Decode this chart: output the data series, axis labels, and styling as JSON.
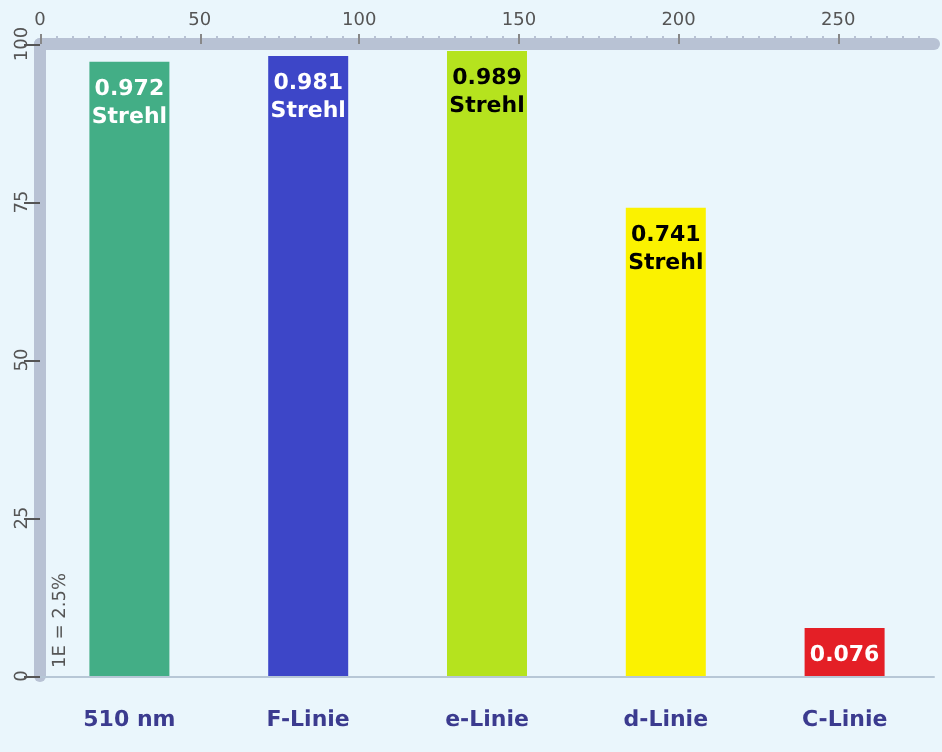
{
  "chart_data": {
    "type": "bar",
    "categories": [
      "510 nm",
      "F-Linie",
      "e-Linie",
      "d-Linie",
      "C-Linie"
    ],
    "values": [
      0.972,
      0.981,
      0.989,
      0.741,
      0.076
    ],
    "colors": [
      "#43ae86",
      "#3d46c8",
      "#b5e31e",
      "#fbf200",
      "#e41f26"
    ],
    "value_labels": [
      "0.972 Strehl",
      "0.981 Strehl",
      "0.989 Strehl",
      "0.741 Strehl",
      "0.076"
    ],
    "ylim": [
      0,
      1
    ],
    "y2lim": [
      0,
      100
    ],
    "y2ticks": [
      0,
      25,
      50,
      75,
      100
    ],
    "x2lim": [
      0,
      280
    ],
    "x2ticks": [
      0,
      50,
      100,
      150,
      200,
      250
    ],
    "annotations": [
      "1E = 2.5%"
    ],
    "grid": false
  }
}
